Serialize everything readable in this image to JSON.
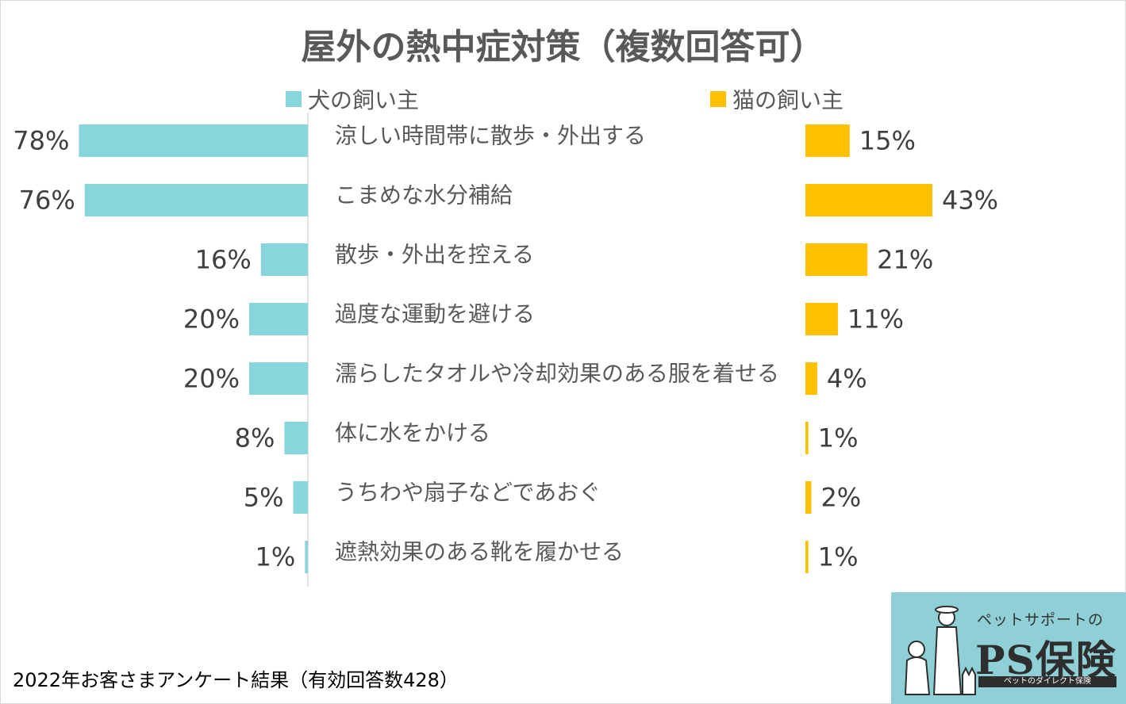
{
  "title": "屋外の熱中症対策（複数回答可）",
  "legend": {
    "dog": {
      "label": "犬の飼い主",
      "color": "#88d5dc"
    },
    "cat": {
      "label": "猫の飼い主",
      "color": "#ffc000"
    }
  },
  "chart_data": {
    "type": "bar",
    "orientation": "horizontal-butterfly",
    "title": "屋外の熱中症対策（複数回答可）",
    "categories": [
      "涼しい時間帯に散歩・外出する",
      "こまめな水分補給",
      "散歩・外出を控える",
      "過度な運動を避ける",
      "濡らしたタオルや冷却効果のある服を着せる",
      "体に水をかける",
      "うちわや扇子などであおぐ",
      "遮熱効果のある靴を履かせる"
    ],
    "series": [
      {
        "name": "犬の飼い主",
        "values": [
          78,
          76,
          16,
          20,
          20,
          8,
          5,
          1
        ],
        "color": "#88d5dc"
      },
      {
        "name": "猫の飼い主",
        "values": [
          15,
          43,
          21,
          11,
          4,
          1,
          2,
          1
        ],
        "color": "#ffc000"
      }
    ],
    "value_suffix": "%",
    "legend_position": "top",
    "grid": false
  },
  "footnote": "2022年お客さまアンケート結果（有効回答数428）",
  "logo": {
    "tagline": "ペットサポートの",
    "name": "PS保険",
    "subtitle": "ペットのダイレクト保険"
  }
}
